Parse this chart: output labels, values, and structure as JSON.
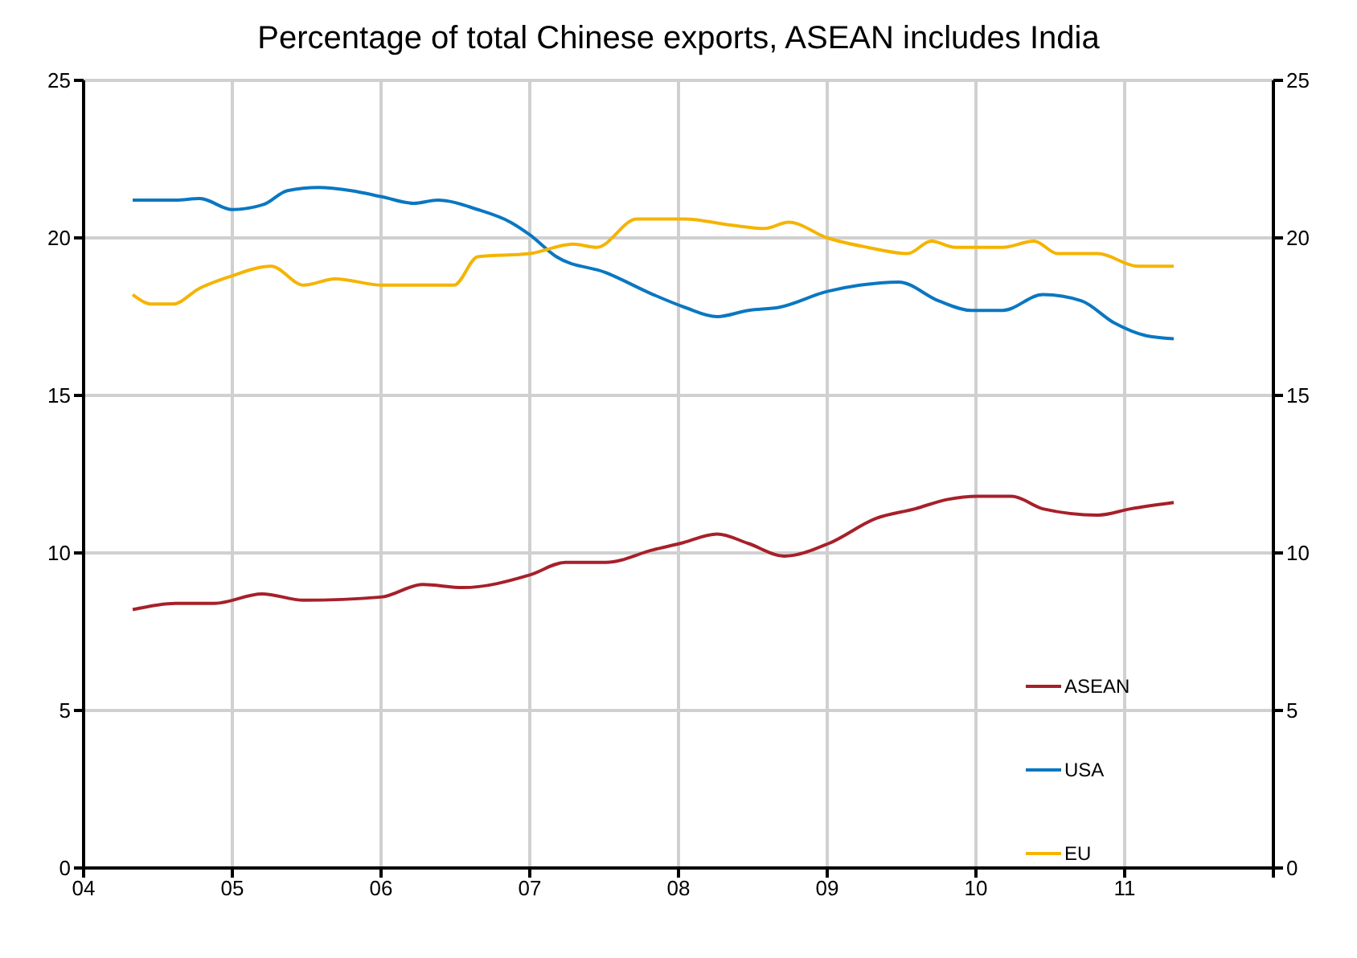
{
  "chart_data": {
    "type": "line",
    "title": "Percentage of total Chinese exports, ASEAN includes India",
    "xlim": [
      2004,
      2012
    ],
    "xticks": [
      {
        "value": 2004,
        "label": "04"
      },
      {
        "value": 2005,
        "label": "05"
      },
      {
        "value": 2006,
        "label": "06"
      },
      {
        "value": 2007,
        "label": "07"
      },
      {
        "value": 2008,
        "label": "08"
      },
      {
        "value": 2009,
        "label": "09"
      },
      {
        "value": 2010,
        "label": "10"
      },
      {
        "value": 2011,
        "label": "11"
      },
      {
        "value": 2012,
        "label": null
      }
    ],
    "ylim": [
      0,
      25
    ],
    "yticks": [
      0,
      5,
      10,
      15,
      20,
      25
    ],
    "y2lim": [
      0,
      25
    ],
    "y2ticks": [
      0,
      5,
      10,
      15,
      20,
      25
    ],
    "grid": true,
    "legend": "bottom right",
    "marker": "none",
    "line_style": "solid",
    "series": [
      {
        "name": "ASEAN",
        "color": "#a6202a",
        "x": [
          2004.33,
          2004.62,
          2004.88,
          2005.2,
          2005.48,
          2006.0,
          2006.28,
          2006.55,
          2007.0,
          2007.24,
          2007.51,
          2007.83,
          2008.01,
          2008.26,
          2008.47,
          2008.71,
          2009.01,
          2009.33,
          2009.59,
          2009.81,
          2010.01,
          2010.24,
          2010.45,
          2010.82,
          2011.04,
          2011.33
        ],
        "values": [
          8.2,
          8.4,
          8.4,
          8.7,
          8.5,
          8.6,
          9.0,
          8.9,
          9.3,
          9.7,
          9.7,
          10.1,
          10.3,
          10.6,
          10.3,
          9.9,
          10.3,
          11.1,
          11.4,
          11.7,
          11.8,
          11.8,
          11.4,
          11.2,
          11.4,
          11.6
        ]
      },
      {
        "name": "USA",
        "color": "#0a77c2",
        "x": [
          2004.33,
          2004.62,
          2004.78,
          2005.0,
          2005.21,
          2005.37,
          2005.58,
          2005.8,
          2006.01,
          2006.22,
          2006.38,
          2006.65,
          2006.87,
          2007.0,
          2007.18,
          2007.51,
          2007.83,
          2008.04,
          2008.26,
          2008.47,
          2008.68,
          2009.0,
          2009.22,
          2009.48,
          2009.75,
          2009.97,
          2010.18,
          2010.45,
          2010.71,
          2010.93,
          2011.14,
          2011.33
        ],
        "values": [
          21.2,
          21.2,
          21.25,
          20.9,
          21.06,
          21.5,
          21.6,
          21.5,
          21.3,
          21.1,
          21.2,
          20.9,
          20.5,
          20.1,
          19.4,
          18.9,
          18.2,
          17.8,
          17.5,
          17.7,
          17.8,
          18.3,
          18.5,
          18.6,
          18.0,
          17.7,
          17.7,
          18.2,
          18.0,
          17.3,
          16.9,
          16.8
        ]
      },
      {
        "name": "EU",
        "color": "#f5b400",
        "x": [
          2004.33,
          2004.46,
          2004.6,
          2004.78,
          2005.0,
          2005.26,
          2005.48,
          2005.69,
          2006.01,
          2006.22,
          2006.49,
          2006.65,
          2007.0,
          2007.29,
          2007.45,
          2007.72,
          2008.04,
          2008.36,
          2008.58,
          2008.74,
          2009.0,
          2009.27,
          2009.54,
          2009.7,
          2009.86,
          2010.18,
          2010.39,
          2010.55,
          2010.82,
          2011.09,
          2011.33
        ],
        "values": [
          18.2,
          17.9,
          17.9,
          18.4,
          18.8,
          19.1,
          18.5,
          18.7,
          18.5,
          18.5,
          18.5,
          19.4,
          19.5,
          19.8,
          19.7,
          20.6,
          20.6,
          20.4,
          20.3,
          20.5,
          20.0,
          19.7,
          19.5,
          19.9,
          19.7,
          19.7,
          19.9,
          19.5,
          19.5,
          19.1,
          19.1
        ]
      }
    ]
  }
}
